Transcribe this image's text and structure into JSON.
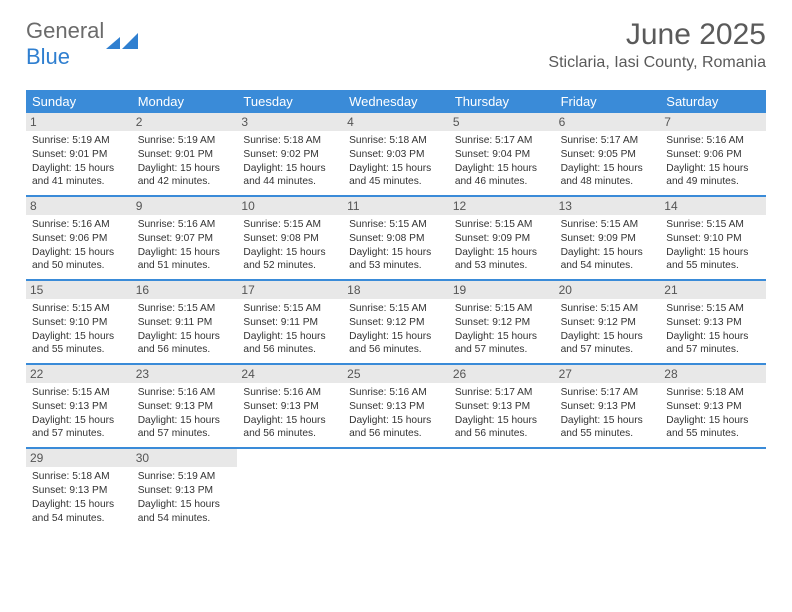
{
  "logo": {
    "text1": "General",
    "text2": "Blue"
  },
  "title": "June 2025",
  "subtitle": "Sticlaria, Iasi County, Romania",
  "colors": {
    "header_bg": "#3a8bd8",
    "header_text": "#ffffff",
    "daynum_bg": "#e8e8e8",
    "rule": "#3a8bd8",
    "logo_gray": "#6b6b6b",
    "logo_blue": "#2f7fd0",
    "body_text": "#333333"
  },
  "dow": [
    "Sunday",
    "Monday",
    "Tuesday",
    "Wednesday",
    "Thursday",
    "Friday",
    "Saturday"
  ],
  "days": [
    {
      "n": "1",
      "sr": "5:19 AM",
      "ss": "9:01 PM",
      "dl1": "15 hours",
      "dl2": "41 minutes."
    },
    {
      "n": "2",
      "sr": "5:19 AM",
      "ss": "9:01 PM",
      "dl1": "15 hours",
      "dl2": "42 minutes."
    },
    {
      "n": "3",
      "sr": "5:18 AM",
      "ss": "9:02 PM",
      "dl1": "15 hours",
      "dl2": "44 minutes."
    },
    {
      "n": "4",
      "sr": "5:18 AM",
      "ss": "9:03 PM",
      "dl1": "15 hours",
      "dl2": "45 minutes."
    },
    {
      "n": "5",
      "sr": "5:17 AM",
      "ss": "9:04 PM",
      "dl1": "15 hours",
      "dl2": "46 minutes."
    },
    {
      "n": "6",
      "sr": "5:17 AM",
      "ss": "9:05 PM",
      "dl1": "15 hours",
      "dl2": "48 minutes."
    },
    {
      "n": "7",
      "sr": "5:16 AM",
      "ss": "9:06 PM",
      "dl1": "15 hours",
      "dl2": "49 minutes."
    },
    {
      "n": "8",
      "sr": "5:16 AM",
      "ss": "9:06 PM",
      "dl1": "15 hours",
      "dl2": "50 minutes."
    },
    {
      "n": "9",
      "sr": "5:16 AM",
      "ss": "9:07 PM",
      "dl1": "15 hours",
      "dl2": "51 minutes."
    },
    {
      "n": "10",
      "sr": "5:15 AM",
      "ss": "9:08 PM",
      "dl1": "15 hours",
      "dl2": "52 minutes."
    },
    {
      "n": "11",
      "sr": "5:15 AM",
      "ss": "9:08 PM",
      "dl1": "15 hours",
      "dl2": "53 minutes."
    },
    {
      "n": "12",
      "sr": "5:15 AM",
      "ss": "9:09 PM",
      "dl1": "15 hours",
      "dl2": "53 minutes."
    },
    {
      "n": "13",
      "sr": "5:15 AM",
      "ss": "9:09 PM",
      "dl1": "15 hours",
      "dl2": "54 minutes."
    },
    {
      "n": "14",
      "sr": "5:15 AM",
      "ss": "9:10 PM",
      "dl1": "15 hours",
      "dl2": "55 minutes."
    },
    {
      "n": "15",
      "sr": "5:15 AM",
      "ss": "9:10 PM",
      "dl1": "15 hours",
      "dl2": "55 minutes."
    },
    {
      "n": "16",
      "sr": "5:15 AM",
      "ss": "9:11 PM",
      "dl1": "15 hours",
      "dl2": "56 minutes."
    },
    {
      "n": "17",
      "sr": "5:15 AM",
      "ss": "9:11 PM",
      "dl1": "15 hours",
      "dl2": "56 minutes."
    },
    {
      "n": "18",
      "sr": "5:15 AM",
      "ss": "9:12 PM",
      "dl1": "15 hours",
      "dl2": "56 minutes."
    },
    {
      "n": "19",
      "sr": "5:15 AM",
      "ss": "9:12 PM",
      "dl1": "15 hours",
      "dl2": "57 minutes."
    },
    {
      "n": "20",
      "sr": "5:15 AM",
      "ss": "9:12 PM",
      "dl1": "15 hours",
      "dl2": "57 minutes."
    },
    {
      "n": "21",
      "sr": "5:15 AM",
      "ss": "9:13 PM",
      "dl1": "15 hours",
      "dl2": "57 minutes."
    },
    {
      "n": "22",
      "sr": "5:15 AM",
      "ss": "9:13 PM",
      "dl1": "15 hours",
      "dl2": "57 minutes."
    },
    {
      "n": "23",
      "sr": "5:16 AM",
      "ss": "9:13 PM",
      "dl1": "15 hours",
      "dl2": "57 minutes."
    },
    {
      "n": "24",
      "sr": "5:16 AM",
      "ss": "9:13 PM",
      "dl1": "15 hours",
      "dl2": "56 minutes."
    },
    {
      "n": "25",
      "sr": "5:16 AM",
      "ss": "9:13 PM",
      "dl1": "15 hours",
      "dl2": "56 minutes."
    },
    {
      "n": "26",
      "sr": "5:17 AM",
      "ss": "9:13 PM",
      "dl1": "15 hours",
      "dl2": "56 minutes."
    },
    {
      "n": "27",
      "sr": "5:17 AM",
      "ss": "9:13 PM",
      "dl1": "15 hours",
      "dl2": "55 minutes."
    },
    {
      "n": "28",
      "sr": "5:18 AM",
      "ss": "9:13 PM",
      "dl1": "15 hours",
      "dl2": "55 minutes."
    },
    {
      "n": "29",
      "sr": "5:18 AM",
      "ss": "9:13 PM",
      "dl1": "15 hours",
      "dl2": "54 minutes."
    },
    {
      "n": "30",
      "sr": "5:19 AM",
      "ss": "9:13 PM",
      "dl1": "15 hours",
      "dl2": "54 minutes."
    }
  ],
  "labels": {
    "sunrise": "Sunrise:",
    "sunset": "Sunset:",
    "daylight": "Daylight:",
    "and": "and"
  }
}
